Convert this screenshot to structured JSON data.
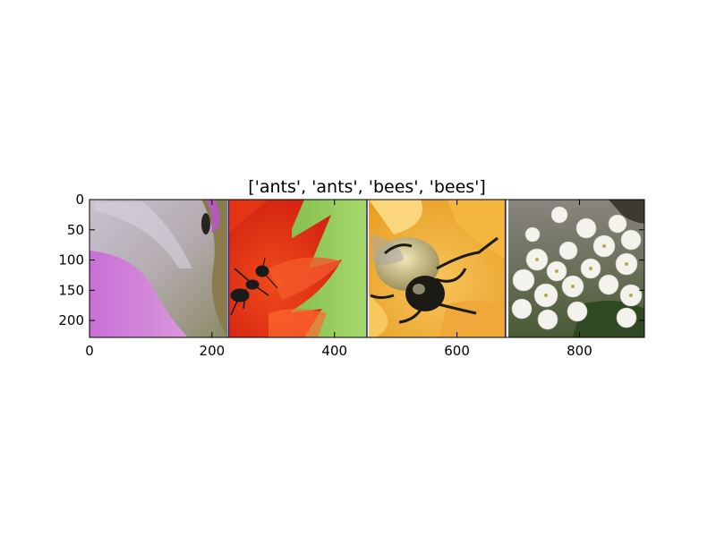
{
  "chart_data": {
    "type": "image-grid",
    "title": "['ants', 'ants', 'bees', 'bees']",
    "xlim": [
      0,
      906
    ],
    "ylim": [
      228,
      0
    ],
    "x_ticks": [
      0,
      200,
      400,
      600,
      800
    ],
    "y_ticks": [
      0,
      50,
      100,
      150,
      200
    ],
    "panels": [
      {
        "label": "ants",
        "x_range": [
          2,
          226
        ],
        "subject": "ant on pink and grey petal"
      },
      {
        "label": "ants",
        "x_range": [
          228,
          452
        ],
        "subject": "ant on red flower"
      },
      {
        "label": "bees",
        "x_range": [
          454,
          678
        ],
        "subject": "bumblebee on yellow flower"
      },
      {
        "label": "bees",
        "x_range": [
          680,
          904
        ],
        "subject": "white flower cluster"
      }
    ],
    "separator_color": "#1f1f8a"
  }
}
